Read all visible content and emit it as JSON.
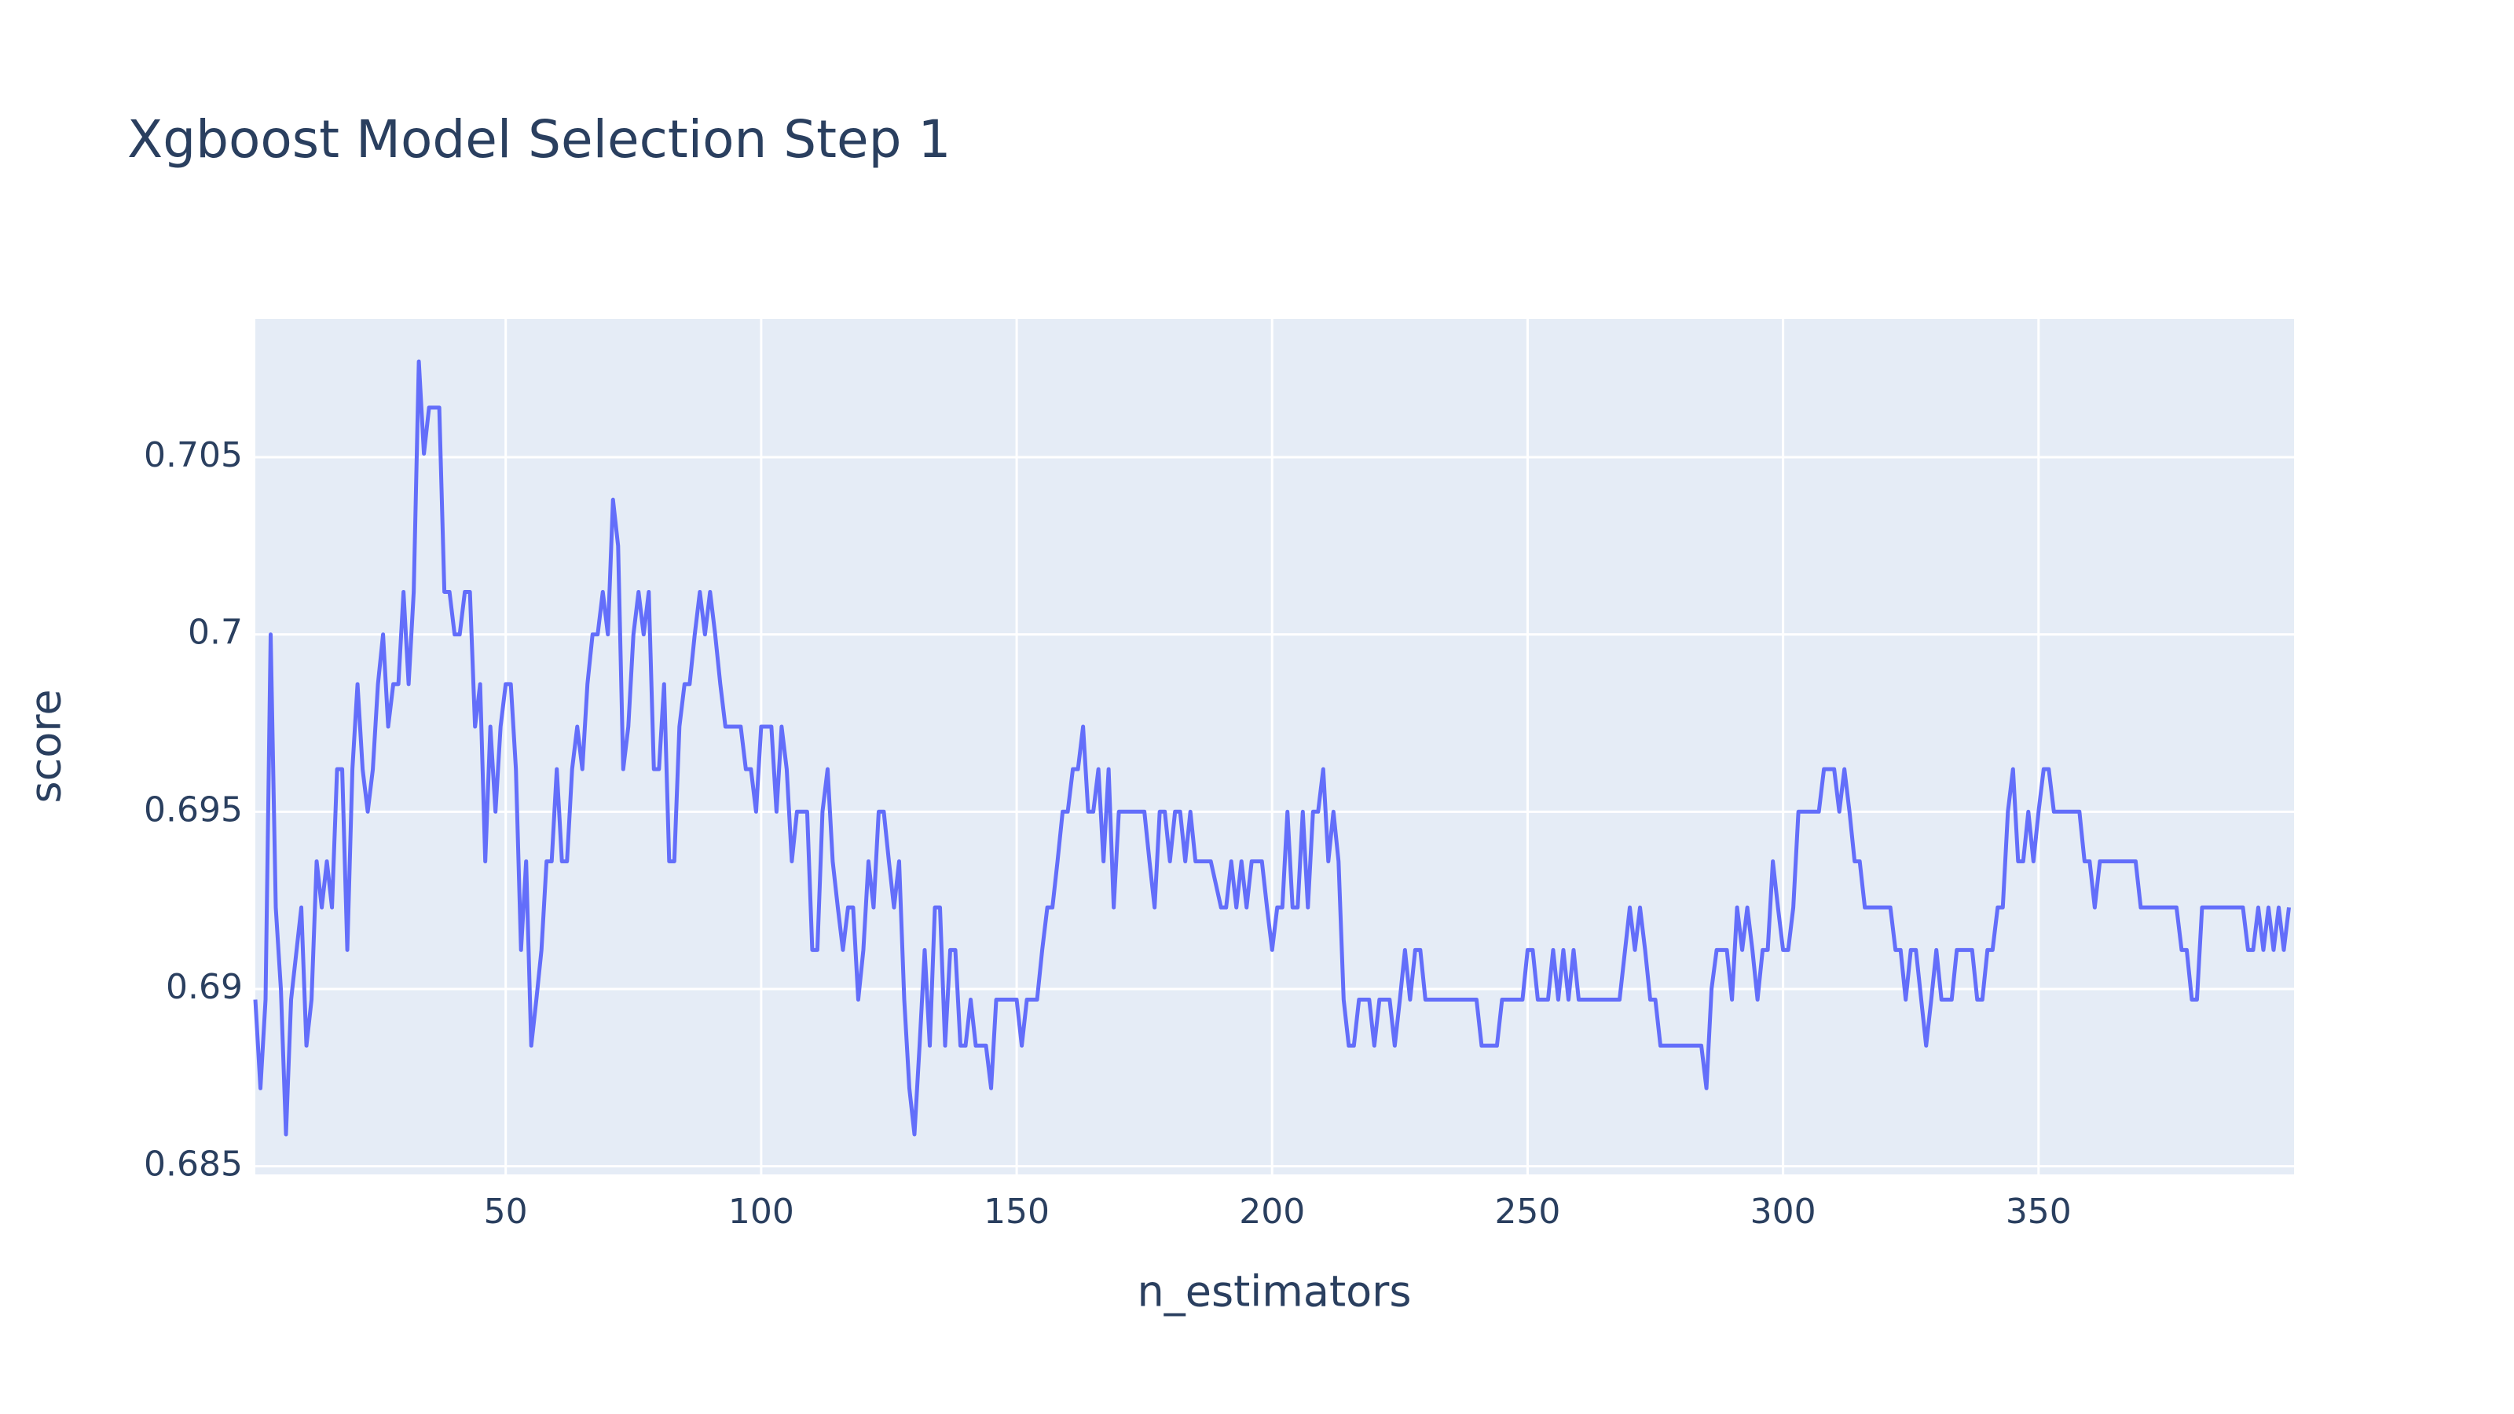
{
  "chart_data": {
    "type": "line",
    "title": "Xgboost Model Selection Step 1",
    "x_label": "n_estimators",
    "y_label": "score",
    "color": "#636efa",
    "grid": true,
    "x": [
      1,
      2,
      3,
      4,
      5,
      6,
      7,
      8,
      10,
      11,
      12,
      13,
      14,
      15,
      16,
      17,
      18,
      19,
      20,
      21,
      22,
      23,
      24,
      25,
      26,
      27,
      28,
      29,
      30,
      31,
      32,
      33,
      34,
      35,
      36,
      37,
      38,
      39,
      40,
      41,
      42,
      43,
      44,
      45,
      46,
      47,
      48,
      49,
      50,
      51,
      52,
      53,
      54,
      55,
      56,
      57,
      58,
      59,
      60,
      61,
      62,
      63,
      64,
      65,
      66,
      67,
      68,
      69,
      70,
      71,
      72,
      73,
      74,
      75,
      76,
      77,
      78,
      79,
      80,
      81,
      82,
      83,
      84,
      85,
      86,
      87,
      88,
      89,
      90,
      91,
      92,
      93,
      94,
      95,
      96,
      97,
      98,
      99,
      100,
      101,
      102,
      103,
      104,
      105,
      106,
      107,
      108,
      109,
      110,
      111,
      112,
      113,
      114,
      115,
      116,
      117,
      118,
      119,
      120,
      121,
      122,
      123,
      124,
      125,
      126,
      127,
      128,
      129,
      130,
      131,
      132,
      133,
      134,
      135,
      136,
      137,
      138,
      139,
      140,
      141,
      142,
      143,
      144,
      145,
      146,
      150,
      151,
      152,
      154,
      155,
      156,
      157,
      158,
      159,
      160,
      161,
      162,
      163,
      164,
      165,
      166,
      167,
      168,
      169,
      170,
      175,
      176,
      177,
      178,
      179,
      180,
      181,
      182,
      183,
      184,
      185,
      188,
      190,
      191,
      192,
      193,
      194,
      195,
      196,
      198,
      199,
      200,
      201,
      202,
      203,
      204,
      205,
      206,
      207,
      208,
      209,
      210,
      211,
      212,
      213,
      214,
      215,
      216,
      217,
      219,
      220,
      221,
      223,
      224,
      225,
      226,
      227,
      228,
      229,
      230,
      240,
      241,
      244,
      245,
      249,
      250,
      251,
      252,
      254,
      255,
      256,
      257,
      258,
      259,
      260,
      268,
      270,
      271,
      272,
      273,
      274,
      275,
      276,
      284,
      285,
      286,
      287,
      289,
      290,
      291,
      292,
      293,
      294,
      295,
      296,
      297,
      298,
      299,
      300,
      301,
      302,
      303,
      307,
      308,
      310,
      311,
      312,
      313,
      314,
      315,
      316,
      321,
      322,
      323,
      324,
      325,
      326,
      328,
      329,
      330,
      331,
      333,
      334,
      337,
      338,
      339,
      340,
      341,
      342,
      343,
      344,
      345,
      346,
      347,
      348,
      349,
      350,
      351,
      352,
      353,
      358,
      359,
      360,
      361,
      362,
      369,
      370,
      377,
      378,
      379,
      380,
      381,
      382,
      390,
      391,
      392,
      393,
      394,
      395,
      396,
      397,
      398,
      399
    ],
    "values": [
      0.6897,
      0.6872,
      0.6897,
      0.7,
      0.6923,
      0.69,
      0.6859,
      0.6897,
      0.6923,
      0.6884,
      0.6897,
      0.6936,
      0.6923,
      0.6936,
      0.6923,
      0.6962,
      0.6962,
      0.6911,
      0.6962,
      0.6986,
      0.6962,
      0.695,
      0.6962,
      0.6986,
      0.7,
      0.6974,
      0.6986,
      0.6986,
      0.7012,
      0.6986,
      0.7012,
      0.7077,
      0.7051,
      0.7064,
      0.7064,
      0.7064,
      0.7012,
      0.7012,
      0.7,
      0.7,
      0.7012,
      0.7012,
      0.6974,
      0.6986,
      0.6936,
      0.6974,
      0.695,
      0.6974,
      0.6986,
      0.6986,
      0.6962,
      0.6911,
      0.6936,
      0.6884,
      0.6897,
      0.6911,
      0.6936,
      0.6936,
      0.6962,
      0.6936,
      0.6936,
      0.6962,
      0.6974,
      0.6962,
      0.6986,
      0.7,
      0.7,
      0.7012,
      0.7,
      0.7038,
      0.7025,
      0.6962,
      0.6974,
      0.7,
      0.7012,
      0.7,
      0.7012,
      0.6962,
      0.6962,
      0.6986,
      0.6936,
      0.6936,
      0.6974,
      0.6986,
      0.6986,
      0.7,
      0.7012,
      0.7,
      0.7012,
      0.7,
      0.6986,
      0.6974,
      0.6974,
      0.6974,
      0.6974,
      0.6962,
      0.6962,
      0.695,
      0.6974,
      0.6974,
      0.6974,
      0.695,
      0.6974,
      0.6962,
      0.6936,
      0.695,
      0.695,
      0.695,
      0.6911,
      0.6911,
      0.695,
      0.6962,
      0.6936,
      0.6923,
      0.6911,
      0.6923,
      0.6923,
      0.6897,
      0.6911,
      0.6936,
      0.6923,
      0.695,
      0.695,
      0.6936,
      0.6923,
      0.6936,
      0.6897,
      0.6872,
      0.6859,
      0.6884,
      0.6911,
      0.6884,
      0.6923,
      0.6923,
      0.6884,
      0.6911,
      0.6911,
      0.6884,
      0.6884,
      0.6897,
      0.6884,
      0.6884,
      0.6884,
      0.6872,
      0.6897,
      0.6897,
      0.6884,
      0.6897,
      0.6897,
      0.6911,
      0.6923,
      0.6923,
      0.6936,
      0.695,
      0.695,
      0.6962,
      0.6962,
      0.6974,
      0.695,
      0.695,
      0.6962,
      0.6936,
      0.6962,
      0.6923,
      0.695,
      0.695,
      0.6936,
      0.6923,
      0.695,
      0.695,
      0.6936,
      0.695,
      0.695,
      0.6936,
      0.695,
      0.6936,
      0.6936,
      0.6923,
      0.6923,
      0.6936,
      0.6923,
      0.6936,
      0.6923,
      0.6936,
      0.6936,
      0.6923,
      0.6911,
      0.6923,
      0.6923,
      0.695,
      0.6923,
      0.6923,
      0.695,
      0.6923,
      0.695,
      0.695,
      0.6962,
      0.6936,
      0.695,
      0.6936,
      0.6897,
      0.6884,
      0.6884,
      0.6897,
      0.6897,
      0.6884,
      0.6897,
      0.6897,
      0.6884,
      0.6897,
      0.6911,
      0.6897,
      0.6911,
      0.6911,
      0.6897,
      0.6897,
      0.6884,
      0.6884,
      0.6897,
      0.6897,
      0.6911,
      0.6911,
      0.6897,
      0.6897,
      0.6911,
      0.6897,
      0.6911,
      0.6897,
      0.6911,
      0.6897,
      0.6897,
      0.6923,
      0.6911,
      0.6923,
      0.6911,
      0.6897,
      0.6897,
      0.6884,
      0.6884,
      0.6872,
      0.69,
      0.6911,
      0.6911,
      0.6897,
      0.6923,
      0.6911,
      0.6923,
      0.6911,
      0.6897,
      0.6911,
      0.6911,
      0.6936,
      0.6923,
      0.6911,
      0.6911,
      0.6923,
      0.695,
      0.695,
      0.6962,
      0.6962,
      0.695,
      0.6962,
      0.695,
      0.6936,
      0.6936,
      0.6923,
      0.6923,
      0.6911,
      0.6911,
      0.6897,
      0.6911,
      0.6911,
      0.6884,
      0.6897,
      0.6911,
      0.6897,
      0.6897,
      0.6911,
      0.6911,
      0.6897,
      0.6897,
      0.6911,
      0.6911,
      0.6923,
      0.6923,
      0.695,
      0.6962,
      0.6936,
      0.6936,
      0.695,
      0.6936,
      0.695,
      0.6962,
      0.6962,
      0.695,
      0.695,
      0.6936,
      0.6936,
      0.6923,
      0.6936,
      0.6936,
      0.6923,
      0.6923,
      0.6911,
      0.6911,
      0.6897,
      0.6897,
      0.6923,
      0.6923,
      0.6911,
      0.6911,
      0.6923,
      0.6911,
      0.6923,
      0.6911,
      0.6923,
      0.6911,
      0.6923
    ],
    "xlim": [
      1,
      400
    ],
    "ylim": [
      0.68477,
      0.7089
    ],
    "xticks": [
      50,
      100,
      150,
      200,
      250,
      300,
      350
    ],
    "yticks": [
      0.685,
      0.69,
      0.695,
      0.7,
      0.705
    ]
  }
}
